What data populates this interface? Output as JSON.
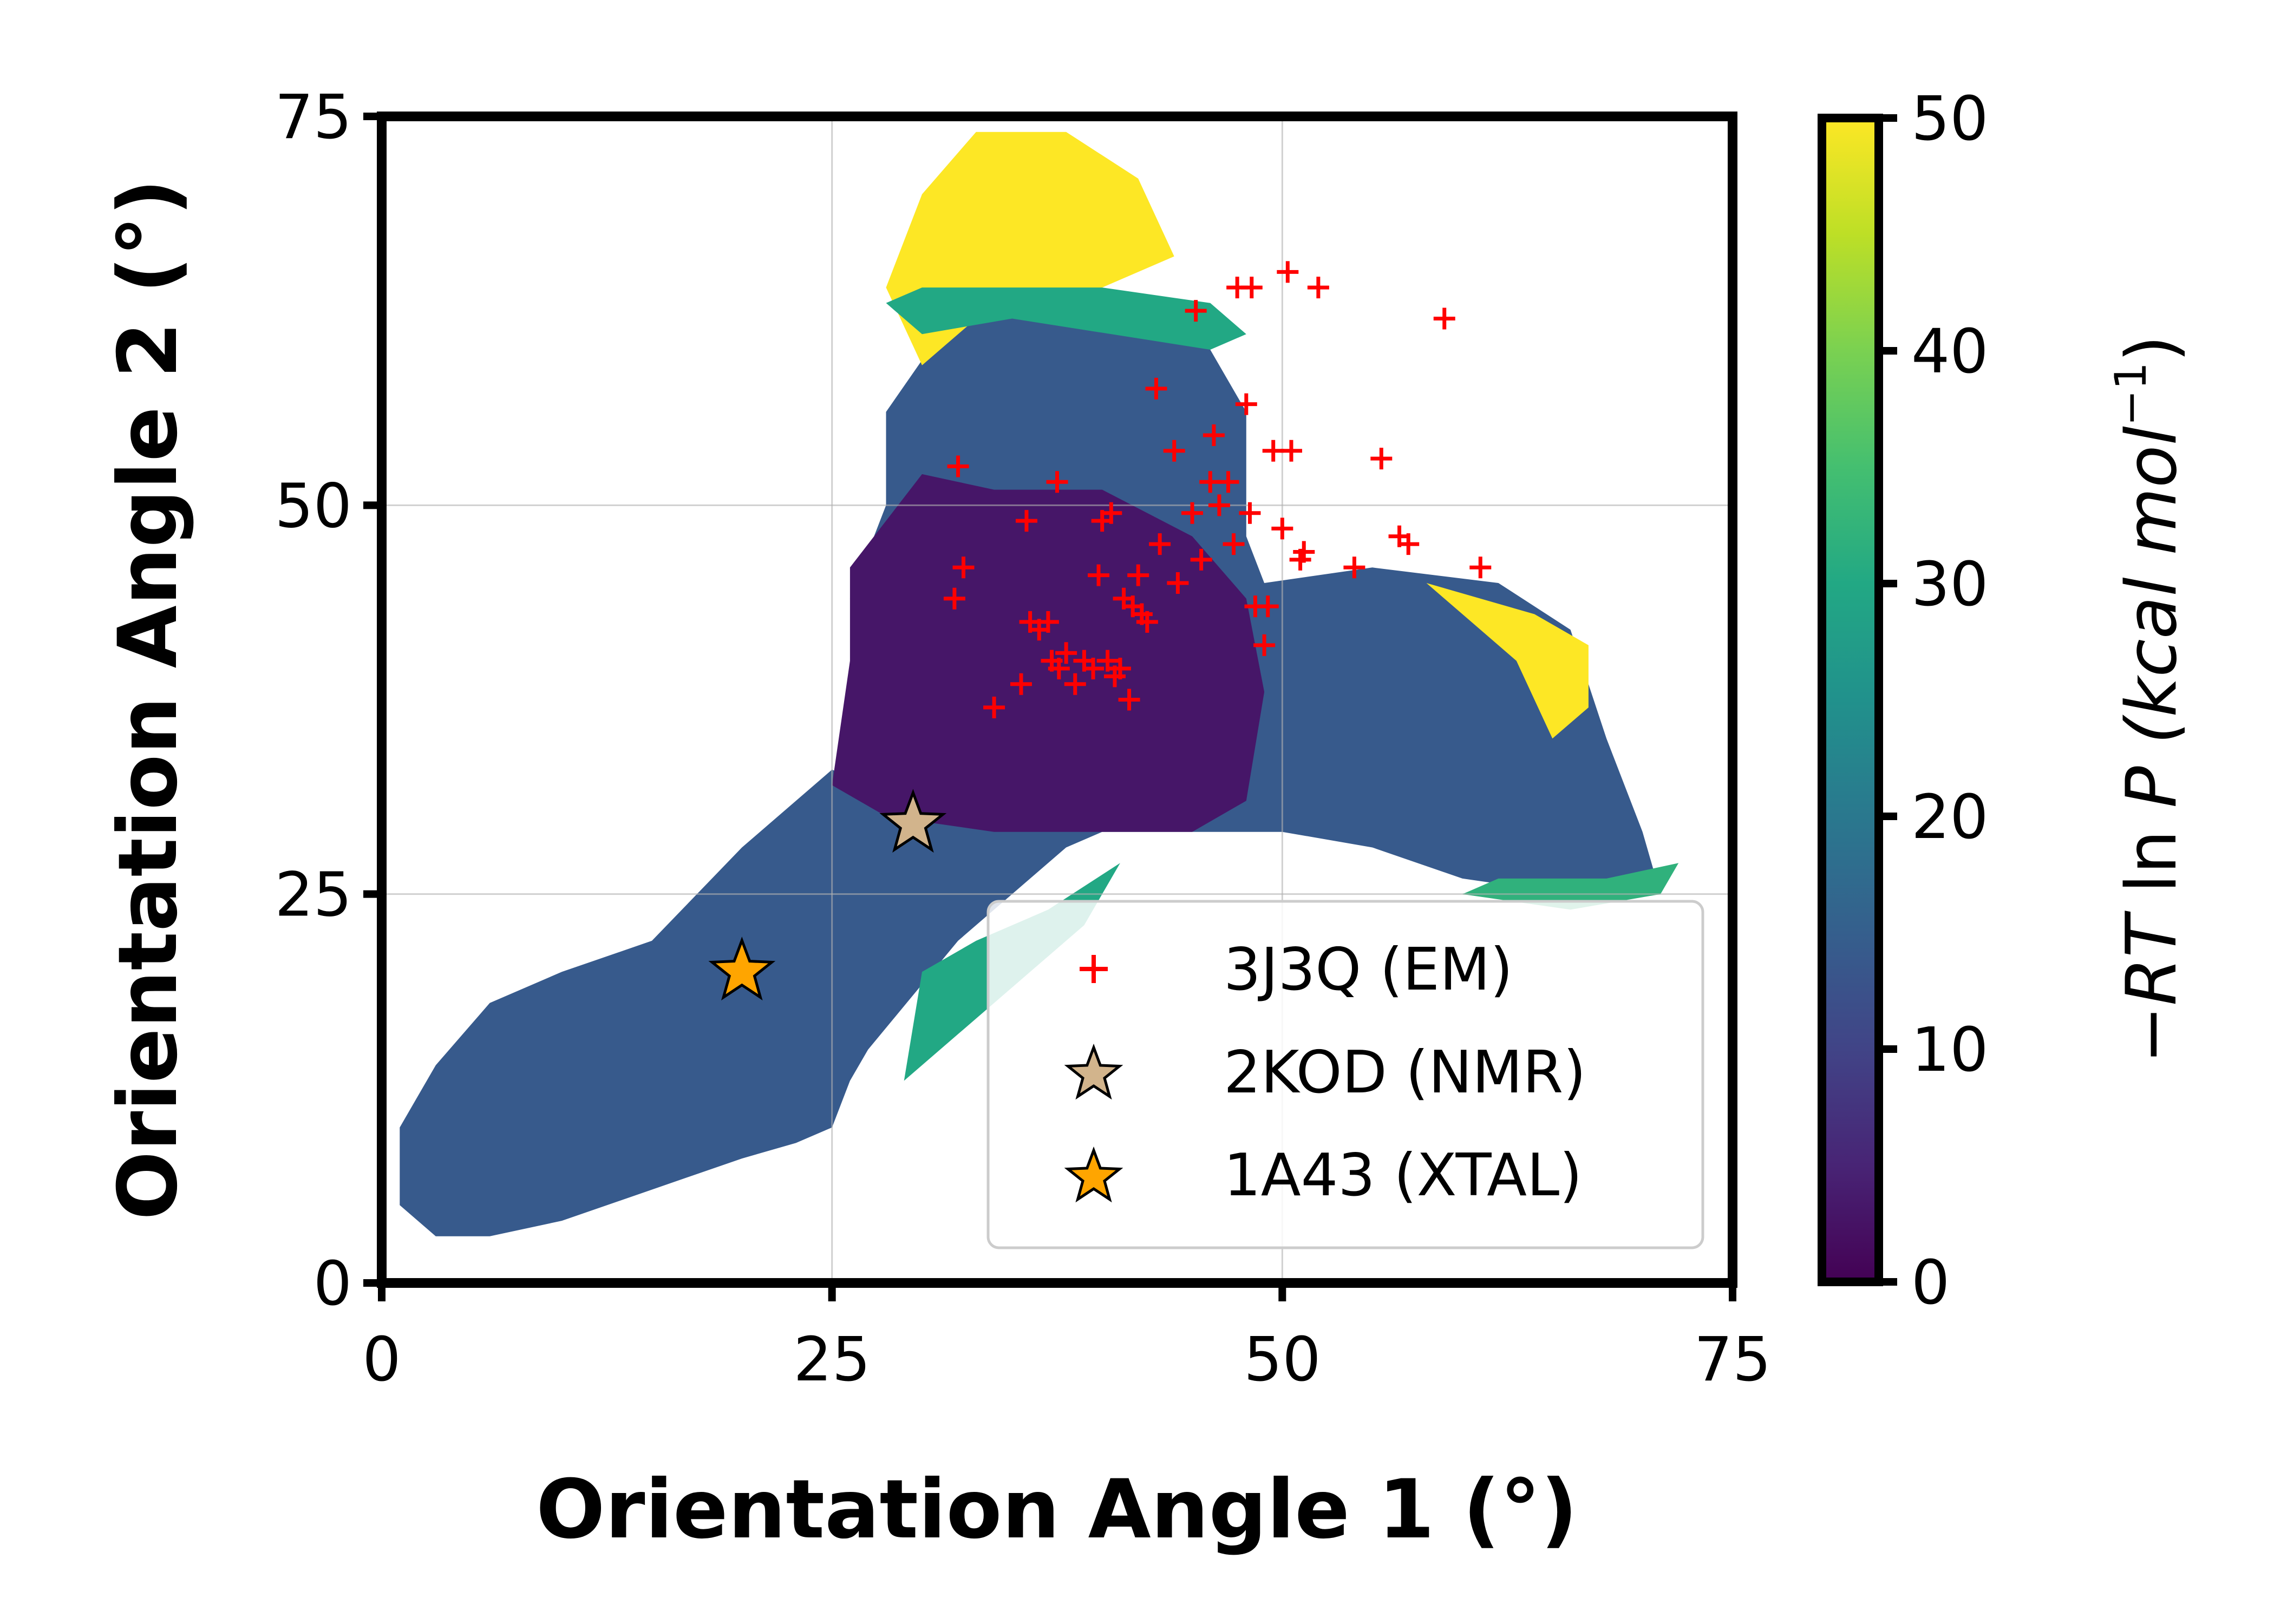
{
  "chart_data": {
    "type": "heatmap",
    "title": "",
    "xlabel": "Orientation Angle 1 (°)",
    "ylabel": "Orientation Angle 2 (°)",
    "xlim": [
      0,
      75
    ],
    "ylim": [
      0,
      75
    ],
    "x_ticks": [
      "0",
      "25",
      "50",
      "75"
    ],
    "y_ticks": [
      "0",
      "25",
      "50",
      "75"
    ],
    "grid": true,
    "colorbar": {
      "label_prefix": "−",
      "label_rt": "RT",
      "label_ln": " ln ",
      "label_p": "P",
      "label_units": " (kcal mol",
      "label_exp": "−1",
      "label_close": ")",
      "range": [
        0,
        50
      ],
      "ticks": [
        "0",
        "10",
        "20",
        "30",
        "40",
        "50"
      ],
      "colormap": "viridis"
    },
    "legend": {
      "placement": "lower-right",
      "entries": [
        {
          "label": "3J3Q (EM)",
          "marker": "plus",
          "color": "#ff0000"
        },
        {
          "label": "2KOD (NMR)",
          "marker": "star",
          "color": "#d2b48c"
        },
        {
          "label": "1A43 (XTAL)",
          "marker": "star",
          "color": "#ffa500"
        }
      ]
    },
    "series": [
      {
        "name": "3J3Q (EM)",
        "marker": "plus",
        "color": "#ff0000",
        "points": [
          [
            32.0,
            52.5
          ],
          [
            32.3,
            46.0
          ],
          [
            31.8,
            44.0
          ],
          [
            34.0,
            37.0
          ],
          [
            35.5,
            38.5
          ],
          [
            35.8,
            49.0
          ],
          [
            36.0,
            42.5
          ],
          [
            36.5,
            42.0
          ],
          [
            37.0,
            42.5
          ],
          [
            37.2,
            40.0
          ],
          [
            37.5,
            51.5
          ],
          [
            37.6,
            39.5
          ],
          [
            38.0,
            40.5
          ],
          [
            38.5,
            38.5
          ],
          [
            39.0,
            40.0
          ],
          [
            39.5,
            39.5
          ],
          [
            39.8,
            45.5
          ],
          [
            40.0,
            49.0
          ],
          [
            40.3,
            40.0
          ],
          [
            40.5,
            49.5
          ],
          [
            40.7,
            39.0
          ],
          [
            41.0,
            39.5
          ],
          [
            41.2,
            44.0
          ],
          [
            41.5,
            37.5
          ],
          [
            41.7,
            43.5
          ],
          [
            42.0,
            45.5
          ],
          [
            42.2,
            43.0
          ],
          [
            42.5,
            42.5
          ],
          [
            43.0,
            57.5
          ],
          [
            43.2,
            47.5
          ],
          [
            44.0,
            53.5
          ],
          [
            44.2,
            45.0
          ],
          [
            45.0,
            49.5
          ],
          [
            45.2,
            62.5
          ],
          [
            45.5,
            46.5
          ],
          [
            46.0,
            51.5
          ],
          [
            46.2,
            54.5
          ],
          [
            46.5,
            50.0
          ],
          [
            47.0,
            51.5
          ],
          [
            47.3,
            47.5
          ],
          [
            47.5,
            64.0
          ],
          [
            48.0,
            56.5
          ],
          [
            48.2,
            49.5
          ],
          [
            48.3,
            64.0
          ],
          [
            48.5,
            43.5
          ],
          [
            49.0,
            41.0
          ],
          [
            49.2,
            43.5
          ],
          [
            49.5,
            53.5
          ],
          [
            50.0,
            48.5
          ],
          [
            50.3,
            65.0
          ],
          [
            50.5,
            53.5
          ],
          [
            51.0,
            46.5
          ],
          [
            51.2,
            47.0
          ],
          [
            52.0,
            64.0
          ],
          [
            54.0,
            46.0
          ],
          [
            55.5,
            53.0
          ],
          [
            56.5,
            48.0
          ],
          [
            57.0,
            47.5
          ],
          [
            59.0,
            62.0
          ],
          [
            61.0,
            46.0
          ]
        ]
      },
      {
        "name": "2KOD (NMR)",
        "marker": "star",
        "color": "#d2b48c",
        "points": [
          [
            29.5,
            29.5
          ]
        ]
      },
      {
        "name": "1A43 (XTAL)",
        "marker": "star",
        "color": "#ffa500",
        "points": [
          [
            20.0,
            20.0
          ]
        ]
      }
    ],
    "density_regions": [
      {
        "value": 3,
        "points": [
          [
            26,
            46
          ],
          [
            30,
            52
          ],
          [
            34,
            51
          ],
          [
            40,
            51
          ],
          [
            45,
            48
          ],
          [
            48,
            44
          ],
          [
            49,
            38
          ],
          [
            48,
            31
          ],
          [
            45,
            29
          ],
          [
            40,
            29
          ],
          [
            34,
            29
          ],
          [
            28,
            30
          ],
          [
            25,
            32
          ],
          [
            26,
            40
          ]
        ]
      },
      {
        "value": 14,
        "points": [
          [
            27,
            32
          ],
          [
            26,
            44
          ],
          [
            28,
            50
          ],
          [
            28,
            56
          ],
          [
            31,
            61
          ],
          [
            35,
            63
          ],
          [
            42,
            62
          ],
          [
            46,
            60
          ],
          [
            48,
            56
          ],
          [
            48,
            48
          ],
          [
            49,
            45
          ],
          [
            55,
            46
          ],
          [
            62,
            45
          ],
          [
            66,
            42
          ],
          [
            68,
            35
          ],
          [
            70,
            29
          ],
          [
            71,
            25
          ],
          [
            66,
            25
          ],
          [
            60,
            26
          ],
          [
            55,
            28
          ],
          [
            50,
            29
          ],
          [
            45,
            29
          ],
          [
            40,
            29
          ],
          [
            38,
            28
          ],
          [
            32,
            22
          ],
          [
            27,
            15
          ],
          [
            26,
            13
          ],
          [
            25,
            10
          ],
          [
            23,
            9
          ],
          [
            20,
            8
          ],
          [
            15,
            6
          ],
          [
            10,
            4
          ],
          [
            6,
            3
          ],
          [
            3,
            3
          ],
          [
            1,
            5
          ],
          [
            1,
            10
          ],
          [
            3,
            14
          ],
          [
            6,
            18
          ],
          [
            10,
            20
          ],
          [
            15,
            22
          ],
          [
            20,
            28
          ],
          [
            25,
            33
          ]
        ]
      },
      {
        "value": 50,
        "points": [
          [
            30,
            59
          ],
          [
            28,
            64
          ],
          [
            30,
            70
          ],
          [
            33,
            74
          ],
          [
            38,
            74
          ],
          [
            42,
            71
          ],
          [
            44,
            66
          ],
          [
            40,
            64
          ],
          [
            34,
            63
          ]
        ]
      },
      {
        "value": 50,
        "points": [
          [
            58,
            45
          ],
          [
            64,
            43
          ],
          [
            67,
            41
          ],
          [
            67,
            37
          ],
          [
            65,
            35
          ],
          [
            63,
            40
          ]
        ]
      },
      {
        "value": 30,
        "points": [
          [
            28,
            63
          ],
          [
            30,
            64
          ],
          [
            40,
            64
          ],
          [
            46,
            63
          ],
          [
            48,
            61
          ],
          [
            46,
            60
          ],
          [
            35,
            62
          ],
          [
            30,
            61
          ]
        ]
      },
      {
        "value": 32,
        "points": [
          [
            60,
            25
          ],
          [
            66,
            24
          ],
          [
            71,
            25
          ],
          [
            72,
            27
          ],
          [
            68,
            26
          ],
          [
            62,
            26
          ]
        ]
      },
      {
        "value": 30,
        "points": [
          [
            30,
            20
          ],
          [
            33,
            22
          ],
          [
            37,
            24
          ],
          [
            41,
            27
          ],
          [
            39,
            23
          ],
          [
            35,
            19
          ],
          [
            32,
            16
          ],
          [
            29,
            13
          ]
        ]
      }
    ]
  }
}
